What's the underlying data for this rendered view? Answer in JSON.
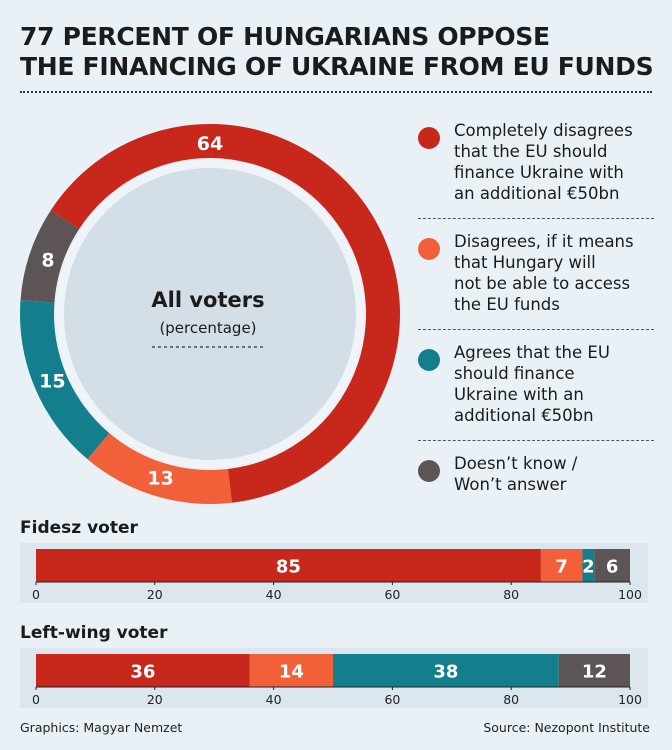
{
  "title": {
    "line1": "77 PERCENT OF HUNGARIANS OPPOSE",
    "line2": "THE FINANCING OF UKRAINE FROM EU FUNDS"
  },
  "colors": {
    "completely_disagrees": "#c8281c",
    "disagrees_conditional": "#f2603a",
    "agrees": "#137e8c",
    "dont_know": "#5d5555",
    "background": "#e9f1f6",
    "center_fill": "#d3dee7"
  },
  "legend": [
    {
      "label": "Completely disagrees that the EU should finance Ukraine with an additional €50bn",
      "lines": [
        "Completely disagrees",
        "that the EU should",
        "finance Ukraine with",
        "an additional €50bn"
      ],
      "color": "#c8281c"
    },
    {
      "label": "Disagrees, if it means that Hungary will not be able to access the EU funds",
      "lines": [
        "Disagrees, if it means",
        "that Hungary will",
        "not be able to access",
        "the EU funds"
      ],
      "color": "#f2603a"
    },
    {
      "label": "Agrees that the EU should finance Ukraine with an additional €50bn",
      "lines": [
        "Agrees that the EU",
        "should finance",
        "Ukraine with an",
        "additional €50bn"
      ],
      "color": "#137e8c"
    },
    {
      "label": "Doesn’t know / Won’t answer",
      "lines": [
        "Doesn’t know /",
        "Won’t answer"
      ],
      "color": "#5d5555"
    }
  ],
  "footer": {
    "left": "Graphics: Magyar Nemzet",
    "right": "Source: Nezopont Institute"
  },
  "chart_data": [
    {
      "type": "pie",
      "title": "All voters",
      "subtitle": "(percentage)",
      "categories": [
        "Completely disagrees that the EU should finance Ukraine with an additional €50bn",
        "Disagrees, if it means that Hungary will not be able to access the EU funds",
        "Agrees that the EU should finance Ukraine with an additional €50bn",
        "Doesn’t know / Won’t answer"
      ],
      "values": [
        64,
        13,
        15,
        8
      ],
      "colors": [
        "#c8281c",
        "#f2603a",
        "#137e8c",
        "#5d5555"
      ],
      "style": "donut"
    },
    {
      "type": "bar",
      "orientation": "horizontal-stacked",
      "title": "Fidesz voter",
      "values": [
        85,
        7,
        2,
        6
      ],
      "labels": [
        "85",
        "7",
        "2",
        "6"
      ],
      "colors": [
        "#c8281c",
        "#f2603a",
        "#137e8c",
        "#5d5555"
      ],
      "xlim": [
        0,
        100
      ],
      "xticks": [
        0,
        20,
        40,
        60,
        80,
        100
      ]
    },
    {
      "type": "bar",
      "orientation": "horizontal-stacked",
      "title": "Left-wing voter",
      "values": [
        36,
        14,
        38,
        12
      ],
      "labels": [
        "36",
        "14",
        "38",
        "12"
      ],
      "colors": [
        "#c8281c",
        "#f2603a",
        "#137e8c",
        "#5d5555"
      ],
      "xlim": [
        0,
        100
      ],
      "xticks": [
        0,
        20,
        40,
        60,
        80,
        100
      ]
    }
  ]
}
